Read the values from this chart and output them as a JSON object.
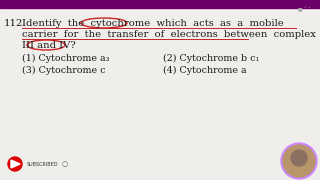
{
  "bg_color": "#f0eeeb",
  "top_bar_color": "#6b006b",
  "question_number": "112.",
  "question_line1": "Identify  the  cytochrome  which  acts  as  a  mobile",
  "question_line2": "carrier  for  the  transfer  of  electrons  between  complex",
  "question_line3": "III and IV?",
  "options": [
    "(1) Cytochrome a₃",
    "(2) Cytochrome b c₁",
    "(3) Cytochrome c",
    "(4) Cytochrome a"
  ],
  "circle_color": "#cc2222",
  "underline_color": "#cc2222",
  "text_color": "#1a1a1a",
  "font_size_q": 7.2,
  "font_size_opt": 6.8,
  "yt_red": "#dd0000",
  "profile_border": "#cc88ff"
}
